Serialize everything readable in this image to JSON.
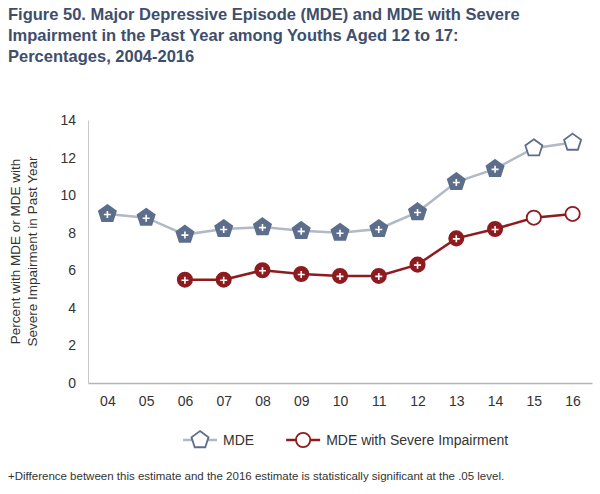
{
  "chart_data": {
    "type": "line",
    "title": [
      "Figure 50. Major Depressive Episode (MDE) and MDE with Severe",
      "Impairment in the Past Year among Youths Aged 12 to 17:",
      "Percentages, 2004-2016"
    ],
    "y_label": [
      "Percent with MDE or MDE with",
      "Severe Impairment in Past Year"
    ],
    "categories": [
      "04",
      "05",
      "06",
      "07",
      "08",
      "09",
      "10",
      "11",
      "12",
      "13",
      "14",
      "15",
      "16"
    ],
    "series": [
      {
        "name": "MDE",
        "color": "#5d6e8c",
        "marker": "pentagon",
        "values": [
          9.0,
          8.8,
          7.9,
          8.2,
          8.3,
          8.1,
          8.0,
          8.2,
          9.1,
          10.7,
          11.4,
          12.5,
          12.8
        ],
        "significant": [
          true,
          true,
          true,
          true,
          true,
          true,
          true,
          true,
          true,
          true,
          true,
          false,
          false
        ]
      },
      {
        "name": "MDE with Severe Impairment",
        "color": "#8e1b1f",
        "marker": "circle",
        "values": [
          null,
          null,
          5.5,
          5.5,
          6.0,
          5.8,
          5.7,
          5.7,
          6.3,
          7.7,
          8.2,
          8.8,
          9.0
        ],
        "significant": [
          false,
          false,
          true,
          true,
          true,
          true,
          true,
          true,
          true,
          true,
          true,
          false,
          false
        ]
      }
    ],
    "ylim": [
      0,
      14
    ],
    "yticks": [
      0,
      2,
      4,
      6,
      8,
      10,
      12,
      14
    ],
    "grid": false,
    "legend": "bottom",
    "note": "+Difference between this estimate and the 2016 estimate is statistically significant at the .05 level."
  }
}
